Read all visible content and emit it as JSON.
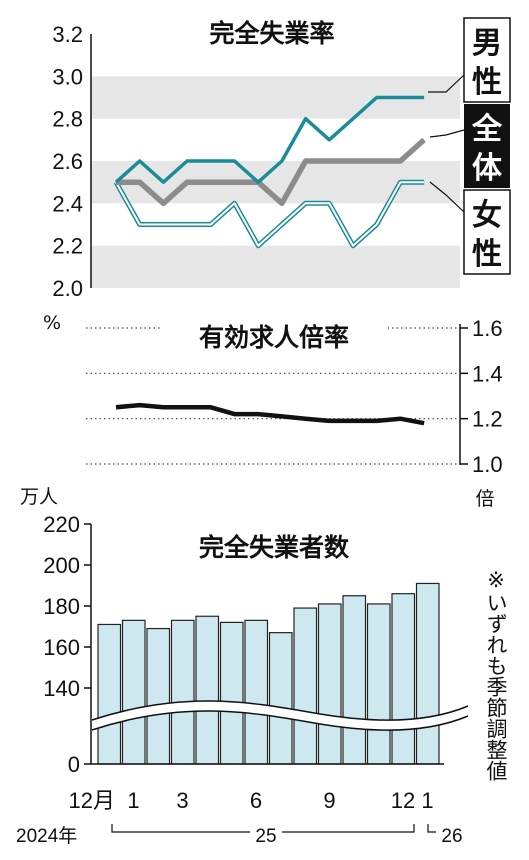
{
  "unemployment_rate": {
    "title": "完全失業率",
    "unit": "%",
    "y_ticks": [
      "3.2",
      "3.0",
      "2.8",
      "2.6",
      "2.4",
      "2.2",
      "2.0"
    ],
    "labels": {
      "male": [
        "男",
        "性"
      ],
      "total": [
        "全",
        "体"
      ],
      "female": [
        "女",
        "性"
      ]
    },
    "colors": {
      "male": "#1a8c96",
      "total": "#8c8c8c",
      "female": "#1a8c96",
      "band": "#e6e6e6"
    }
  },
  "jobs_ratio": {
    "title": "有効求人倍率",
    "unit": "倍",
    "y_ticks": [
      "1.6",
      "1.4",
      "1.2",
      "1.0"
    ]
  },
  "unemployed": {
    "title": "完全失業者数",
    "unit": "万人",
    "y_ticks": [
      "220",
      "200",
      "180",
      "160",
      "140",
      "0"
    ],
    "bar_color": "#cde9ef"
  },
  "x_axis": {
    "labels": [
      "12月",
      "1",
      "3",
      "6",
      "9",
      "12",
      "1"
    ],
    "years": [
      "2024年",
      "25",
      "26"
    ]
  },
  "note": "※いずれも季節調整値",
  "chart_data": [
    {
      "type": "line",
      "title": "完全失業率",
      "ylabel": "%",
      "ylim": [
        2.0,
        3.2
      ],
      "x": [
        "2024-12",
        "2025-01",
        "2025-02",
        "2025-03",
        "2025-04",
        "2025-05",
        "2025-06",
        "2025-07",
        "2025-08",
        "2025-09",
        "2025-10",
        "2025-11",
        "2025-12",
        "2026-01"
      ],
      "series": [
        {
          "name": "男性",
          "values": [
            2.5,
            2.6,
            2.5,
            2.6,
            2.6,
            2.6,
            2.5,
            2.6,
            2.8,
            2.7,
            2.8,
            2.9,
            2.9,
            2.9
          ]
        },
        {
          "name": "全体",
          "values": [
            2.5,
            2.5,
            2.4,
            2.5,
            2.5,
            2.5,
            2.5,
            2.4,
            2.6,
            2.6,
            2.6,
            2.6,
            2.6,
            2.7
          ]
        },
        {
          "name": "女性",
          "values": [
            2.5,
            2.3,
            2.3,
            2.3,
            2.3,
            2.4,
            2.2,
            2.3,
            2.4,
            2.4,
            2.2,
            2.3,
            2.5,
            2.5
          ]
        }
      ]
    },
    {
      "type": "line",
      "title": "有効求人倍率",
      "ylabel": "倍",
      "ylim": [
        1.0,
        1.6
      ],
      "x": [
        "2024-12",
        "2025-01",
        "2025-02",
        "2025-03",
        "2025-04",
        "2025-05",
        "2025-06",
        "2025-07",
        "2025-08",
        "2025-09",
        "2025-10",
        "2025-11",
        "2025-12",
        "2026-01"
      ],
      "values": [
        1.25,
        1.26,
        1.25,
        1.25,
        1.25,
        1.22,
        1.22,
        1.21,
        1.2,
        1.19,
        1.19,
        1.19,
        1.2,
        1.18
      ]
    },
    {
      "type": "bar",
      "title": "完全失業者数",
      "ylabel": "万人",
      "ylim": [
        0,
        220
      ],
      "x": [
        "2024-12",
        "2025-01",
        "2025-02",
        "2025-03",
        "2025-04",
        "2025-05",
        "2025-06",
        "2025-07",
        "2025-08",
        "2025-09",
        "2025-10",
        "2025-11",
        "2025-12",
        "2026-01"
      ],
      "values": [
        171,
        173,
        169,
        173,
        175,
        172,
        173,
        167,
        179,
        181,
        185,
        181,
        186,
        191
      ]
    }
  ]
}
